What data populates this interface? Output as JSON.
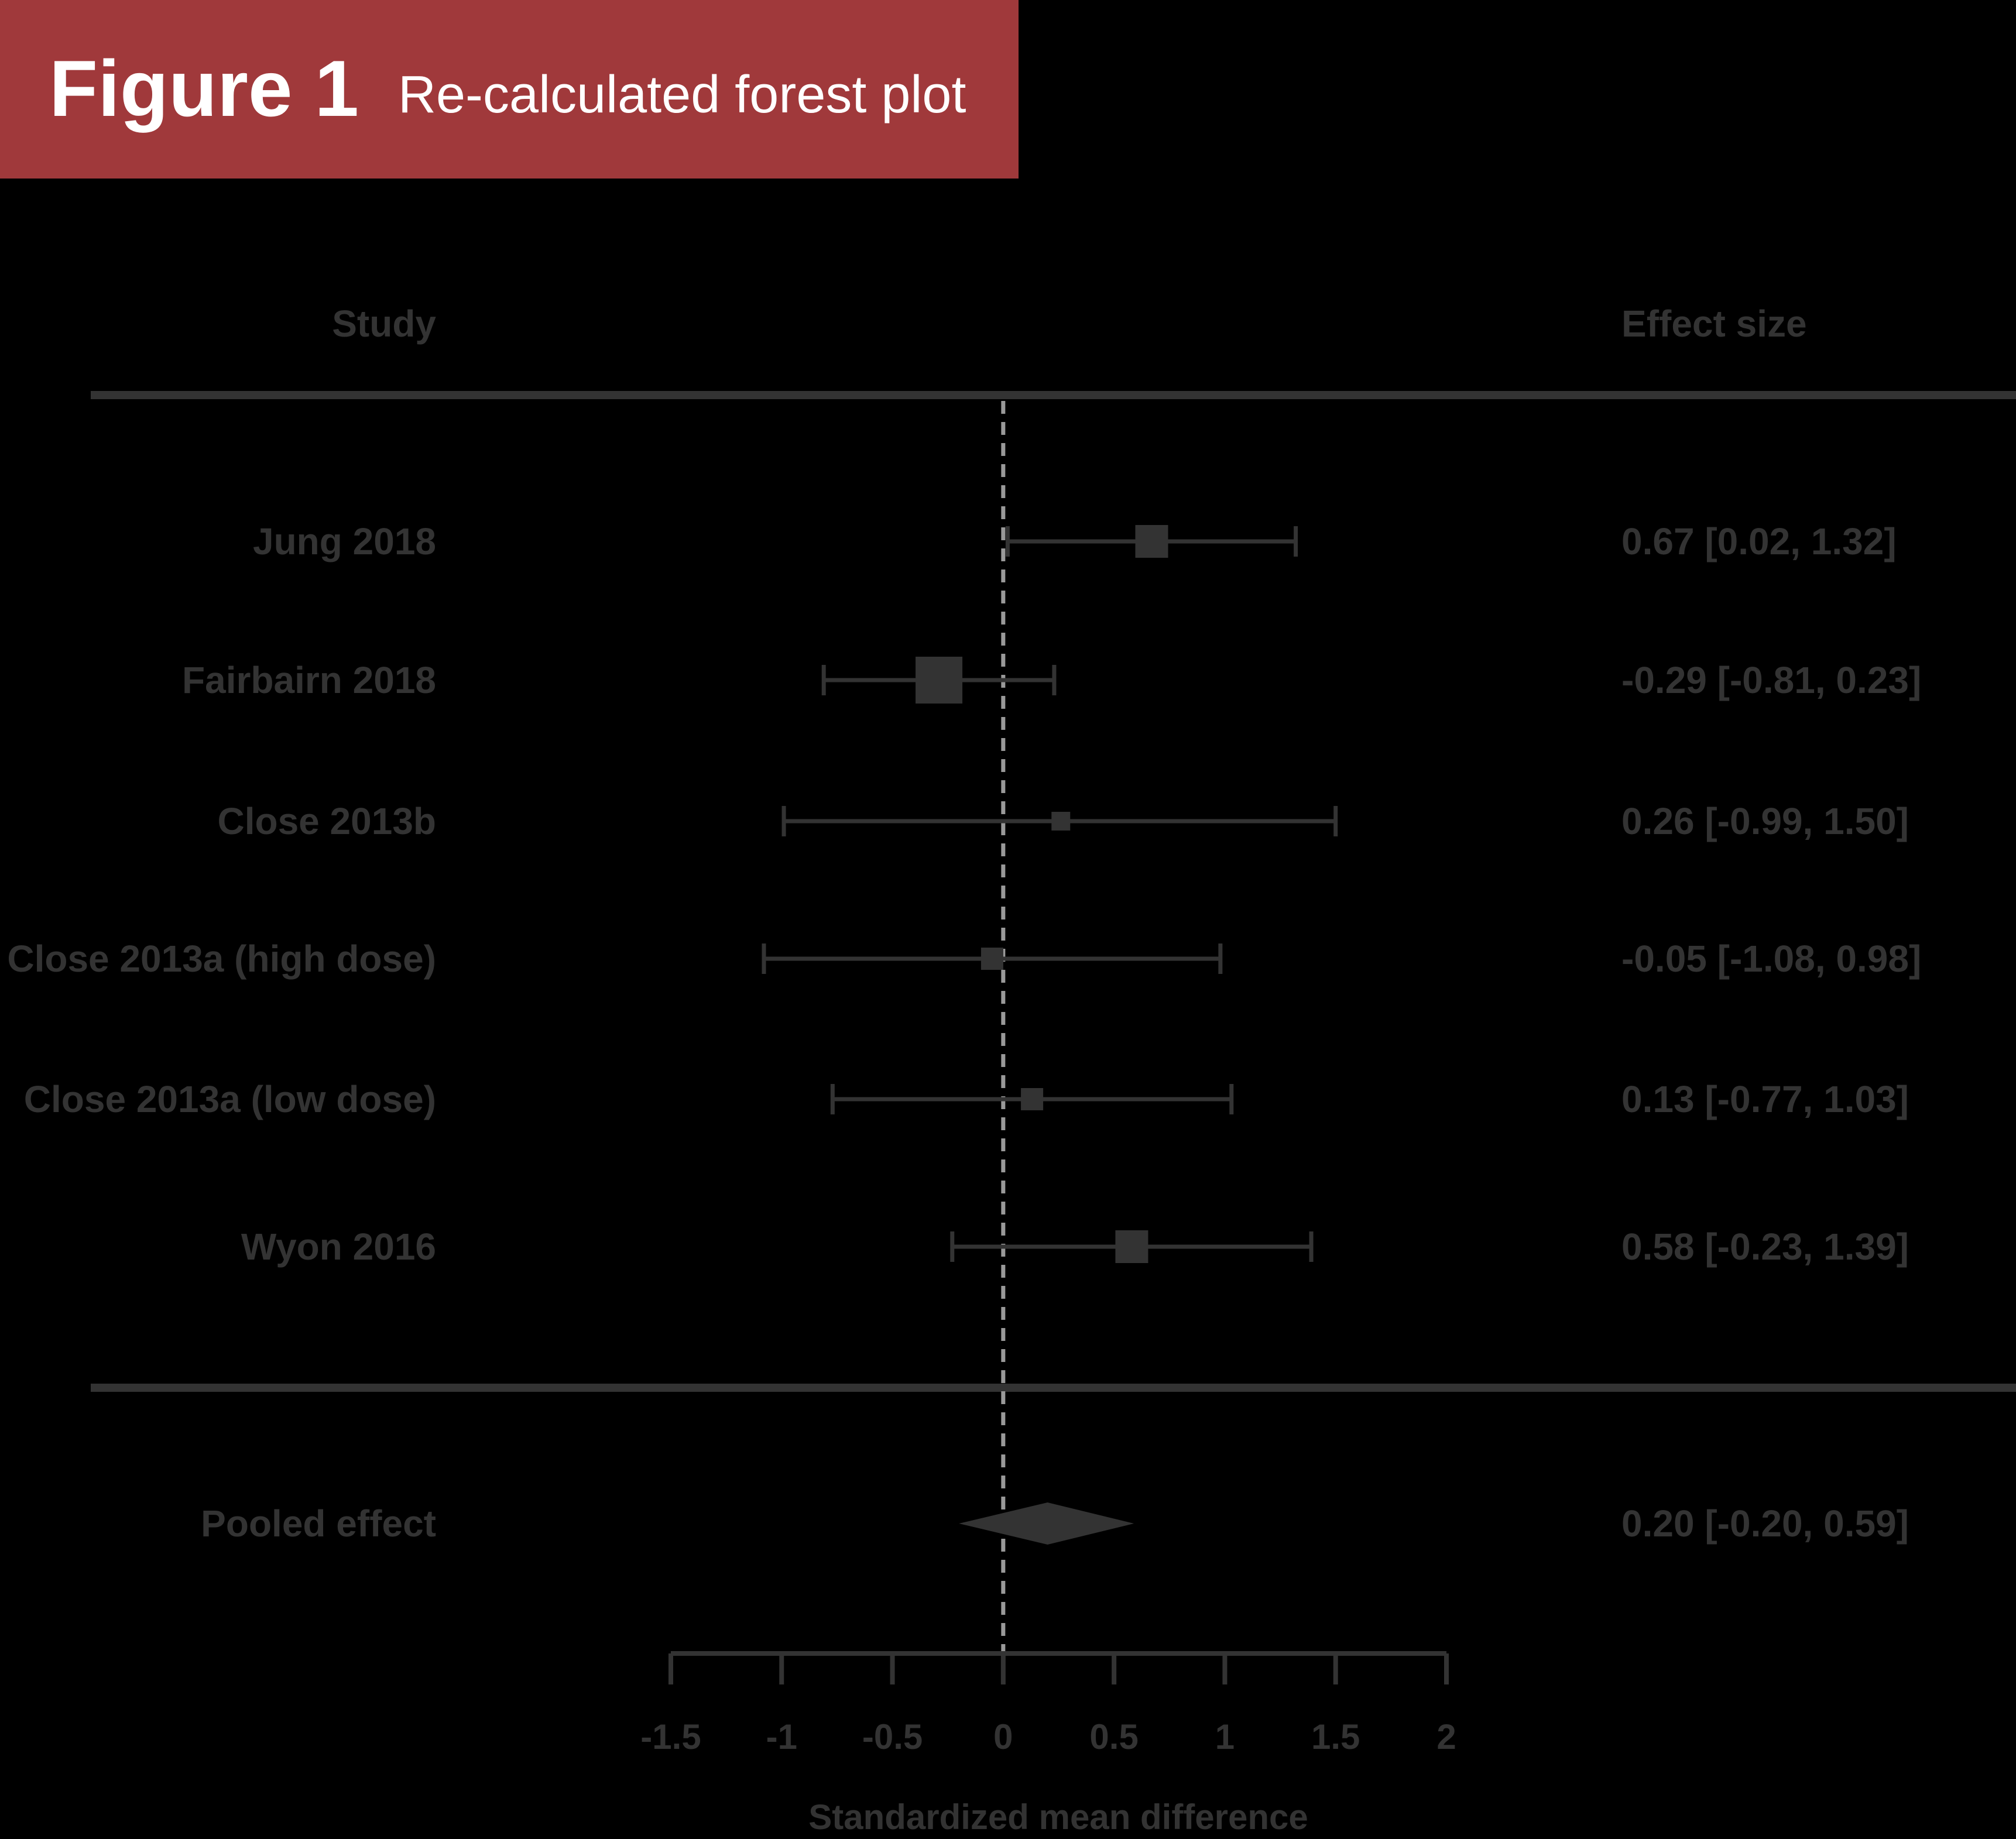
{
  "figure": {
    "label": "Figure 1",
    "title": "Re-calculated forest plot"
  },
  "colors": {
    "banner": "#a0393b",
    "background": "#000000",
    "ink": "#333333",
    "reference_line": "#9a9a9a"
  },
  "chart_data": {
    "type": "forest",
    "study_header": "Study",
    "effect_header": "Effect size",
    "xlabel": "Standardized mean difference",
    "xlim": [
      -1.5,
      2
    ],
    "xticks": [
      -1.5,
      -1,
      -0.5,
      0,
      0.5,
      1,
      1.5,
      2
    ],
    "xtick_labels": [
      "-1.5",
      "-1",
      "-0.5",
      "0",
      "0.5",
      "1",
      "1.5",
      "2"
    ],
    "reference_line": 0,
    "studies": [
      {
        "name": "Jung 2018",
        "estimate": 0.67,
        "lower": 0.02,
        "upper": 1.32,
        "weight": 3,
        "label": "0.67 [0.02, 1.32]"
      },
      {
        "name": "Fairbairn 2018",
        "estimate": -0.29,
        "lower": -0.81,
        "upper": 0.23,
        "weight": 5,
        "label": "-0.29 [-0.81, 0.23]"
      },
      {
        "name": "Close 2013b",
        "estimate": 0.26,
        "lower": -0.99,
        "upper": 1.5,
        "weight": 1,
        "label": "0.26 [-0.99, 1.50]"
      },
      {
        "name": "Close 2013a (high dose)",
        "estimate": -0.05,
        "lower": -1.08,
        "upper": 0.98,
        "weight": 1.5,
        "label": "-0.05 [-1.08, 0.98]"
      },
      {
        "name": "Close 2013a (low dose)",
        "estimate": 0.13,
        "lower": -0.77,
        "upper": 1.03,
        "weight": 1.5,
        "label": "0.13 [-0.77, 1.03]"
      },
      {
        "name": "Wyon 2016",
        "estimate": 0.58,
        "lower": -0.23,
        "upper": 1.39,
        "weight": 3,
        "label": "0.58 [-0.23, 1.39]"
      }
    ],
    "pooled": {
      "name": "Pooled effect",
      "estimate": 0.2,
      "lower": -0.2,
      "upper": 0.59,
      "label": "0.20 [-0.20, 0.59]"
    }
  }
}
